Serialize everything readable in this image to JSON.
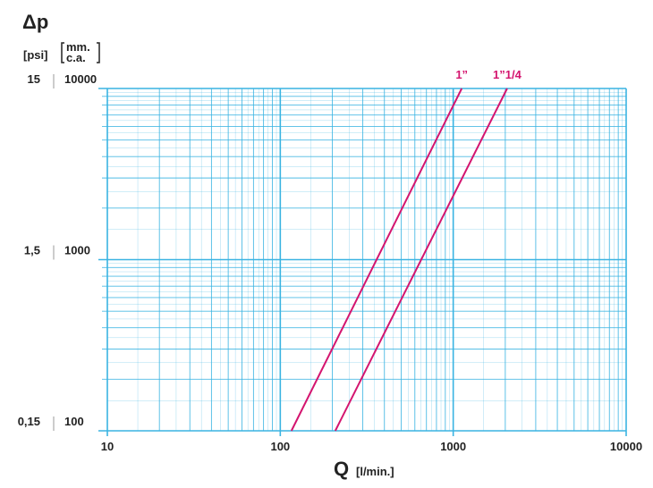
{
  "chart_data": {
    "type": "line",
    "y_symbol": "Δp",
    "y2_unit": "[psi]",
    "y_unit_lines": [
      "mm.",
      "c.a."
    ],
    "x_symbol": "Q",
    "x_unit": "[l/min.]",
    "xscale": "log",
    "yscale": "log",
    "xlim": [
      10,
      10000
    ],
    "xticks": [
      10,
      100,
      1000,
      10000
    ],
    "ylim": [
      100,
      10000
    ],
    "yticks": [
      100,
      1000,
      10000
    ],
    "y2lim": [
      0.15,
      15
    ],
    "y2ticks": [
      {
        "value": 0.15,
        "label": "0,15"
      },
      {
        "value": 1.5,
        "label": "1,5"
      },
      {
        "value": 15,
        "label": "15"
      }
    ],
    "grid": true,
    "grid_color": "#3ab4e2",
    "series": [
      {
        "name": "1”",
        "color": "#d4156f",
        "x": [
          116,
          1120
        ],
        "values": [
          100,
          10000
        ]
      },
      {
        "name": "1”1/4",
        "color": "#d4156f",
        "x": [
          208,
          2050
        ],
        "values": [
          100,
          10000
        ]
      }
    ]
  }
}
